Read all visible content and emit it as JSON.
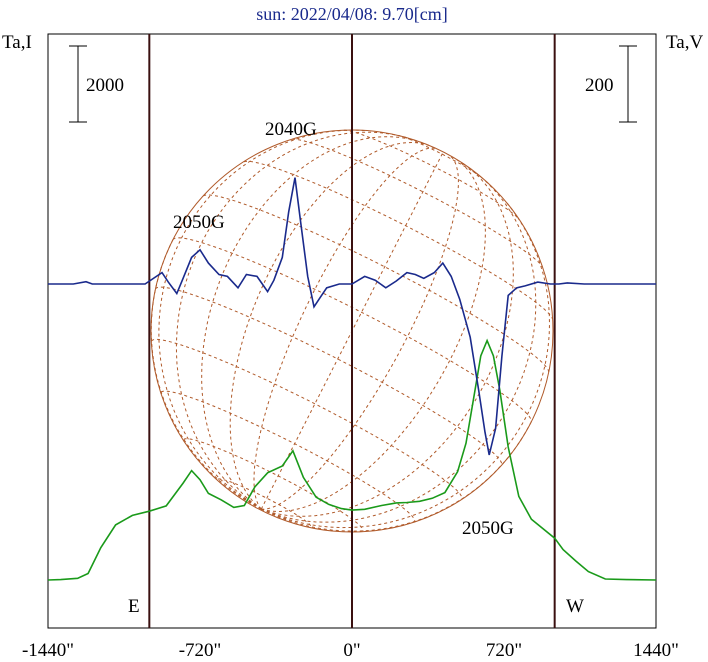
{
  "chart_data": {
    "type": "line",
    "title": "sun: 2022/04/08: 9.70[cm]",
    "left_axis_label": "Ta,I",
    "right_axis_label": "Ta,V",
    "scale_bar_left": "2000",
    "scale_bar_right": "200",
    "x_ticks": [
      {
        "value": -1440,
        "label": "-1440\""
      },
      {
        "value": -720,
        "label": "-720\""
      },
      {
        "value": 0,
        "label": "0\""
      },
      {
        "value": 720,
        "label": "720\""
      },
      {
        "value": 1440,
        "label": "1440\""
      }
    ],
    "xlim": [
      -1440,
      1440
    ],
    "limb_east_arcsec": -960,
    "limb_west_arcsec": 960,
    "limb_labels": {
      "east": "E",
      "west": "W"
    },
    "annotations": [
      {
        "text": "2050G",
        "x": -720,
        "series": "V"
      },
      {
        "text": "2040G",
        "x": -280,
        "series": "V"
      },
      {
        "text": "2050G",
        "x": 660,
        "series": "V"
      }
    ],
    "series": [
      {
        "id": "I",
        "color": "#1a9a1a",
        "points": [
          [
            -1440,
            0
          ],
          [
            -1380,
            10
          ],
          [
            -1300,
            45
          ],
          [
            -1250,
            170
          ],
          [
            -1190,
            850
          ],
          [
            -1120,
            1450
          ],
          [
            -1040,
            1700
          ],
          [
            -960,
            1810
          ],
          [
            -880,
            1950
          ],
          [
            -800,
            2550
          ],
          [
            -760,
            2880
          ],
          [
            -720,
            2640
          ],
          [
            -680,
            2280
          ],
          [
            -620,
            2110
          ],
          [
            -560,
            1910
          ],
          [
            -510,
            1960
          ],
          [
            -460,
            2450
          ],
          [
            -400,
            2820
          ],
          [
            -330,
            3000
          ],
          [
            -280,
            3400
          ],
          [
            -230,
            2700
          ],
          [
            -170,
            2180
          ],
          [
            -110,
            1990
          ],
          [
            -50,
            1880
          ],
          [
            0,
            1840
          ],
          [
            60,
            1860
          ],
          [
            140,
            1960
          ],
          [
            210,
            2030
          ],
          [
            260,
            2040
          ],
          [
            320,
            2070
          ],
          [
            380,
            2150
          ],
          [
            440,
            2300
          ],
          [
            500,
            2850
          ],
          [
            540,
            3600
          ],
          [
            580,
            4900
          ],
          [
            610,
            5900
          ],
          [
            640,
            6300
          ],
          [
            670,
            5900
          ],
          [
            700,
            5000
          ],
          [
            740,
            3500
          ],
          [
            790,
            2200
          ],
          [
            850,
            1600
          ],
          [
            960,
            1100
          ],
          [
            1000,
            800
          ],
          [
            1060,
            500
          ],
          [
            1120,
            220
          ],
          [
            1200,
            25
          ],
          [
            1300,
            10
          ],
          [
            1440,
            0
          ]
        ]
      },
      {
        "id": "V",
        "color": "#1a2a8c",
        "points": [
          [
            -1440,
            0
          ],
          [
            -1320,
            0
          ],
          [
            -1260,
            6
          ],
          [
            -1230,
            0
          ],
          [
            -1100,
            0
          ],
          [
            -980,
            0
          ],
          [
            -900,
            30
          ],
          [
            -870,
            5
          ],
          [
            -830,
            -25
          ],
          [
            -800,
            15
          ],
          [
            -760,
            70
          ],
          [
            -720,
            90
          ],
          [
            -680,
            55
          ],
          [
            -630,
            25
          ],
          [
            -590,
            20
          ],
          [
            -540,
            -10
          ],
          [
            -500,
            25
          ],
          [
            -450,
            20
          ],
          [
            -400,
            -20
          ],
          [
            -370,
            10
          ],
          [
            -330,
            70
          ],
          [
            -300,
            190
          ],
          [
            -270,
            280
          ],
          [
            -245,
            170
          ],
          [
            -210,
            20
          ],
          [
            -180,
            -60
          ],
          [
            -150,
            -35
          ],
          [
            -120,
            -10
          ],
          [
            -60,
            0
          ],
          [
            0,
            0
          ],
          [
            60,
            20
          ],
          [
            110,
            10
          ],
          [
            160,
            -10
          ],
          [
            210,
            8
          ],
          [
            260,
            30
          ],
          [
            300,
            25
          ],
          [
            340,
            15
          ],
          [
            390,
            30
          ],
          [
            430,
            55
          ],
          [
            470,
            20
          ],
          [
            510,
            -40
          ],
          [
            560,
            -140
          ],
          [
            600,
            -280
          ],
          [
            630,
            -390
          ],
          [
            650,
            -450
          ],
          [
            680,
            -380
          ],
          [
            710,
            -190
          ],
          [
            740,
            -30
          ],
          [
            780,
            -10
          ],
          [
            820,
            -5
          ],
          [
            880,
            5
          ],
          [
            940,
            0
          ],
          [
            980,
            0
          ],
          [
            1020,
            3
          ],
          [
            1100,
            0
          ],
          [
            1200,
            0
          ],
          [
            1440,
            0
          ]
        ]
      }
    ]
  }
}
